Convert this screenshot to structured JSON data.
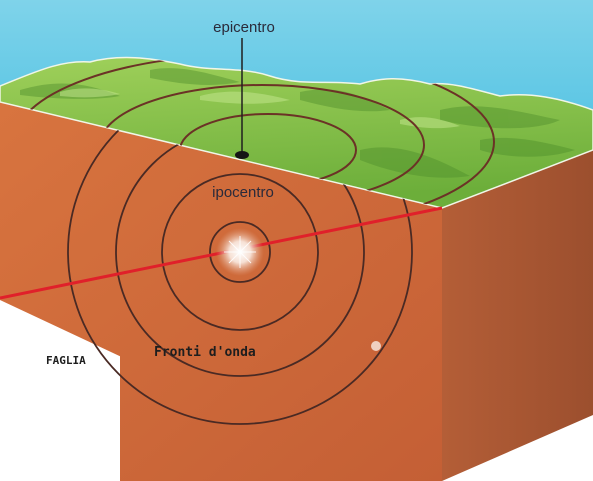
{
  "labels": {
    "epicentro": "epicentro",
    "ipocentro": "ipocentro",
    "faglia": "FAGLIA",
    "fronti_onda": "Fronti d'onda"
  },
  "colors": {
    "sea": "#58c8e6",
    "land": "#86c447",
    "land_dark": "#5d9f2f",
    "front_face": "#d06a3a",
    "side_face": "#a85633",
    "fault": "#e0202a",
    "wavefront": "#4a2a24"
  }
}
